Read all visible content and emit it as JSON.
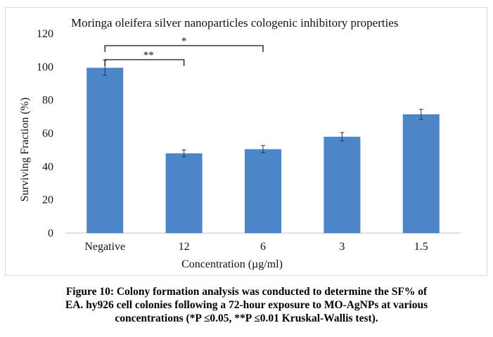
{
  "chart_data": {
    "type": "bar",
    "title": "Moringa oleifera silver nanoparticles cologenic inhibitory properties",
    "xlabel": "Concentration (µg/ml)",
    "ylabel": "Surviving Fraction (%)",
    "categories": [
      "Negative",
      "12",
      "6",
      "3",
      "1.5"
    ],
    "values": [
      99.5,
      48,
      50.5,
      58,
      71.5
    ],
    "errors": [
      4.5,
      2,
      2.2,
      2.5,
      3
    ],
    "ylim": [
      0,
      120
    ],
    "yticks": [
      "0",
      "20",
      "40",
      "60",
      "80",
      "100",
      "120"
    ],
    "grid": false,
    "bar_color": "#4a86c8",
    "significance": [
      {
        "label": "*",
        "from_category": "Negative",
        "to_category": "6"
      },
      {
        "label": "**",
        "from_category": "Negative",
        "to_category": "12"
      }
    ]
  },
  "caption": {
    "lines": [
      "Figure 10: Colony formation analysis was conducted to determine the SF% of",
      "EA. hy926 cell colonies following a 72-hour exposure to MO-AgNPs at various",
      "concentrations (*P ≤0.05, **P ≤0.01 Kruskal-Wallis test)."
    ]
  }
}
